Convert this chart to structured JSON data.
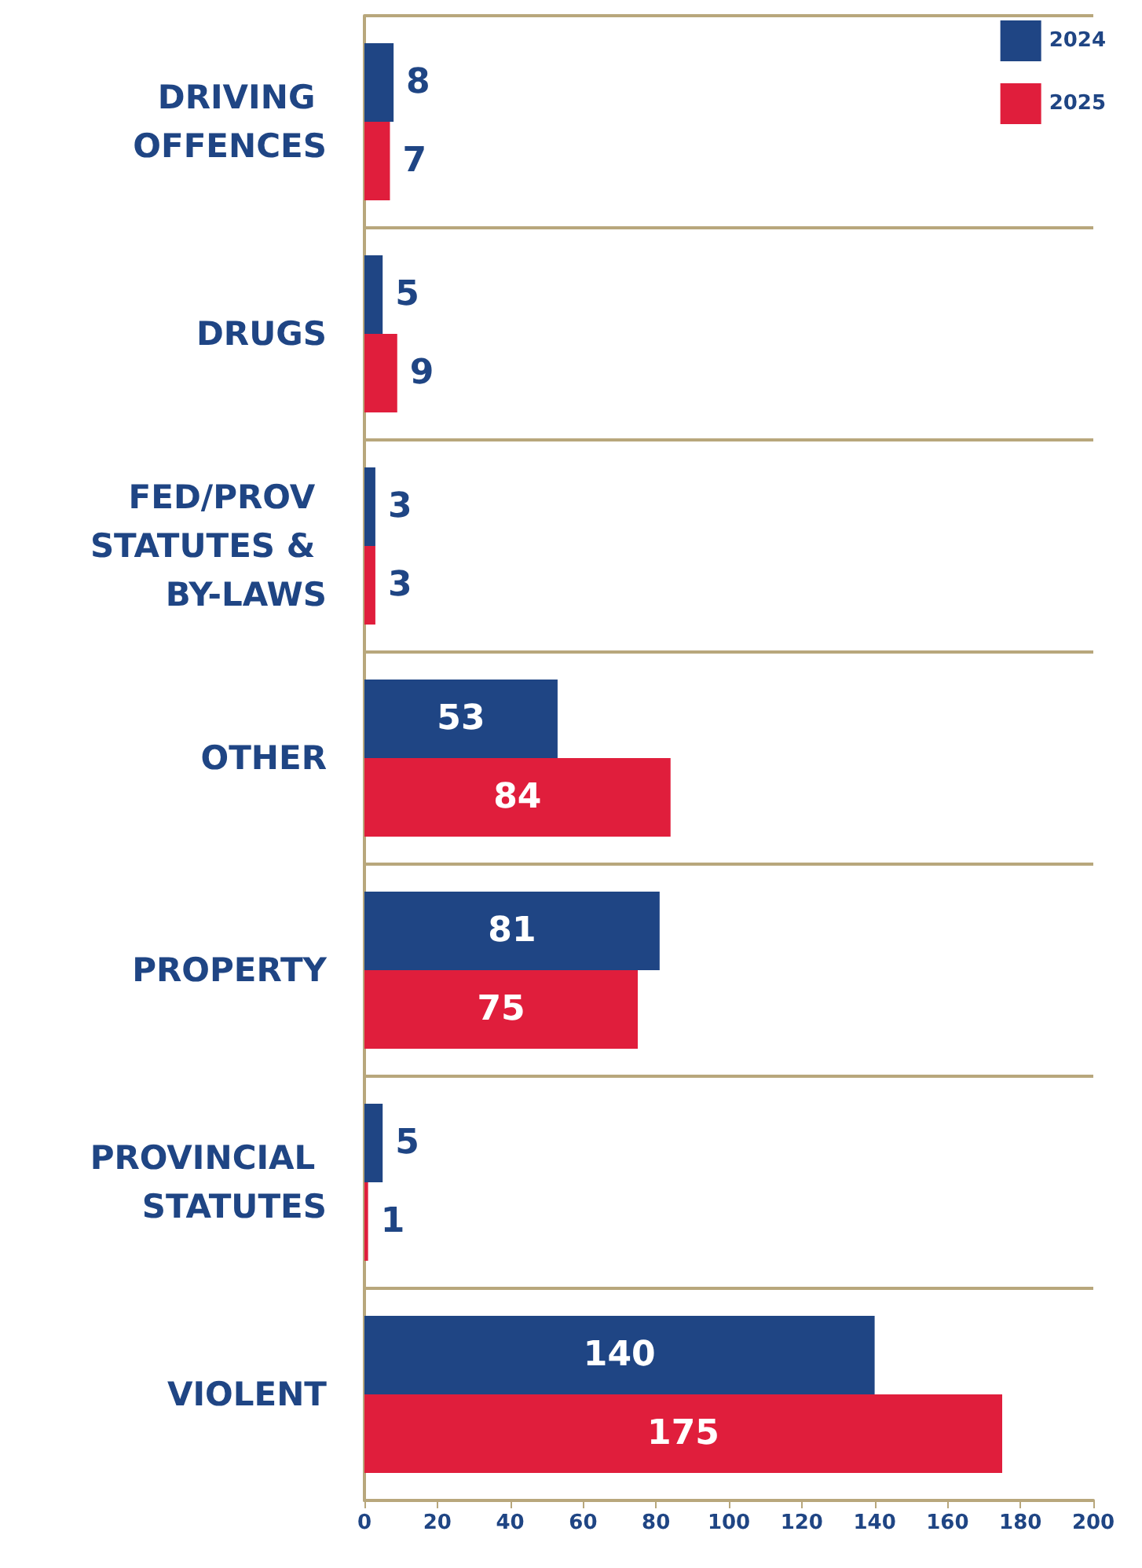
{
  "chart_data": {
    "type": "bar",
    "orientation": "horizontal",
    "categories": [
      "DRIVING OFFENCES",
      "DRUGS",
      "FED/PROV STATUTES & BY-LAWS",
      "OTHER",
      "PROPERTY",
      "PROVINCIAL STATUTES",
      "VIOLENT"
    ],
    "series": [
      {
        "name": "2024",
        "color": "#1f4584",
        "values": [
          8,
          5,
          3,
          53,
          81,
          5,
          140
        ]
      },
      {
        "name": "2025",
        "color": "#e01e3c",
        "values": [
          7,
          9,
          3,
          84,
          75,
          1,
          175
        ]
      }
    ],
    "xlim": [
      0,
      200
    ],
    "xticks": [
      0,
      20,
      40,
      60,
      80,
      100,
      120,
      140,
      160,
      180,
      200
    ],
    "data_labels": true,
    "legend": "top right",
    "grid": "y"
  }
}
